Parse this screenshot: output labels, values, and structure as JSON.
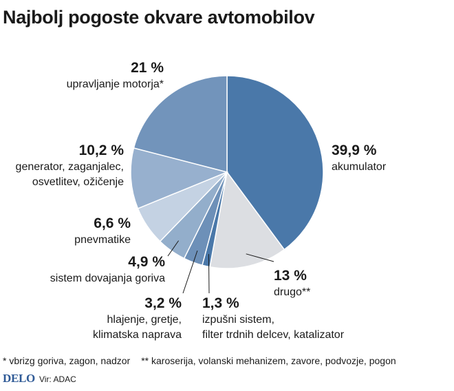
{
  "title": "Najbolj pogoste okvare avtomobilov",
  "chart_data": {
    "type": "pie",
    "slices": [
      {
        "key": "akumulator",
        "value": 39.9,
        "label": "39,9 %",
        "name": [
          "akumulator"
        ],
        "color": "#4a78a9"
      },
      {
        "key": "drugo",
        "value": 13,
        "label": "13 %",
        "name": [
          "drugo**"
        ],
        "color": "#dcdee2"
      },
      {
        "key": "izpusni",
        "value": 1.3,
        "label": "1,3 %",
        "name": [
          "izpušni sistem,",
          "filter trdnih delcev, katalizator"
        ],
        "color": "#4a78a9"
      },
      {
        "key": "hlajenje",
        "value": 3.2,
        "label": "3,2 %",
        "name": [
          "hlajenje, gretje,",
          "klimatska naprava"
        ],
        "color": "#6d90b8"
      },
      {
        "key": "gorivo",
        "value": 4.9,
        "label": "4,9 %",
        "name": [
          "sistem dovajanja goriva"
        ],
        "color": "#93aecb"
      },
      {
        "key": "pnevmatike",
        "value": 6.6,
        "label": "6,6 %",
        "name": [
          "pnevmatike"
        ],
        "color": "#c4d2e3"
      },
      {
        "key": "generator",
        "value": 10.2,
        "label": "10,2 %",
        "name": [
          "generator, zaganjalec,",
          "osvetlitev, ožičenje"
        ],
        "color": "#97b0ce"
      },
      {
        "key": "motor",
        "value": 21,
        "label": "21 %",
        "name": [
          "upravljanje motorja*"
        ],
        "color": "#7294bb"
      }
    ]
  },
  "footnotes": {
    "a": "* vbrizg goriva, zagon, nadzor",
    "b": "** karoserija, volanski mehanizem, zavore, podvozje, pogon"
  },
  "source": {
    "logo": "DELO",
    "text": "Vir: ADAC"
  }
}
